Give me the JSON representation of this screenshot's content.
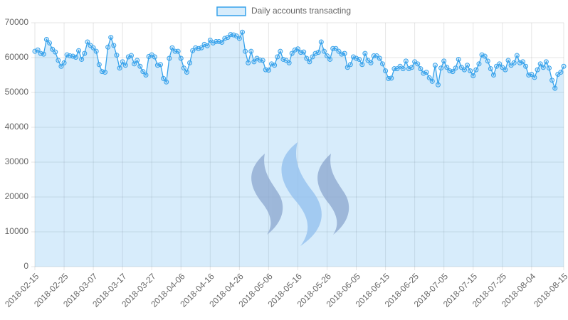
{
  "chart_data": {
    "type": "line",
    "x": [
      "2018-02-15",
      "2018-02-16",
      "2018-02-17",
      "2018-02-18",
      "2018-02-19",
      "2018-02-20",
      "2018-02-21",
      "2018-02-22",
      "2018-02-23",
      "2018-02-24",
      "2018-02-25",
      "2018-02-26",
      "2018-02-27",
      "2018-02-28",
      "2018-03-01",
      "2018-03-02",
      "2018-03-03",
      "2018-03-04",
      "2018-03-05",
      "2018-03-06",
      "2018-03-07",
      "2018-03-08",
      "2018-03-09",
      "2018-03-10",
      "2018-03-11",
      "2018-03-12",
      "2018-03-13",
      "2018-03-14",
      "2018-03-15",
      "2018-03-16",
      "2018-03-17",
      "2018-03-18",
      "2018-03-19",
      "2018-03-20",
      "2018-03-21",
      "2018-03-22",
      "2018-03-23",
      "2018-03-24",
      "2018-03-25",
      "2018-03-26",
      "2018-03-27",
      "2018-03-28",
      "2018-03-29",
      "2018-03-30",
      "2018-03-31",
      "2018-04-01",
      "2018-04-02",
      "2018-04-03",
      "2018-04-04",
      "2018-04-05",
      "2018-04-06",
      "2018-04-07",
      "2018-04-08",
      "2018-04-09",
      "2018-04-10",
      "2018-04-11",
      "2018-04-12",
      "2018-04-13",
      "2018-04-14",
      "2018-04-15",
      "2018-04-16",
      "2018-04-17",
      "2018-04-18",
      "2018-04-19",
      "2018-04-20",
      "2018-04-21",
      "2018-04-22",
      "2018-04-23",
      "2018-04-24",
      "2018-04-25",
      "2018-04-26",
      "2018-04-27",
      "2018-04-28",
      "2018-04-29",
      "2018-04-30",
      "2018-05-01",
      "2018-05-02",
      "2018-05-03",
      "2018-05-04",
      "2018-05-05",
      "2018-05-06",
      "2018-05-07",
      "2018-05-08",
      "2018-05-09",
      "2018-05-10",
      "2018-05-11",
      "2018-05-12",
      "2018-05-13",
      "2018-05-14",
      "2018-05-15",
      "2018-05-16",
      "2018-05-17",
      "2018-05-18",
      "2018-05-19",
      "2018-05-20",
      "2018-05-21",
      "2018-05-22",
      "2018-05-23",
      "2018-05-24",
      "2018-05-25",
      "2018-05-26",
      "2018-05-27",
      "2018-05-28",
      "2018-05-29",
      "2018-05-30",
      "2018-05-31",
      "2018-06-01",
      "2018-06-02",
      "2018-06-03",
      "2018-06-04",
      "2018-06-05",
      "2018-06-06",
      "2018-06-07",
      "2018-06-08",
      "2018-06-09",
      "2018-06-10",
      "2018-06-11",
      "2018-06-12",
      "2018-06-13",
      "2018-06-14",
      "2018-06-15",
      "2018-06-16",
      "2018-06-17",
      "2018-06-18",
      "2018-06-19",
      "2018-06-20",
      "2018-06-21",
      "2018-06-22",
      "2018-06-23",
      "2018-06-24",
      "2018-06-25",
      "2018-06-26",
      "2018-06-27",
      "2018-06-28",
      "2018-06-29",
      "2018-06-30",
      "2018-07-01",
      "2018-07-02",
      "2018-07-03",
      "2018-07-04",
      "2018-07-05",
      "2018-07-06",
      "2018-07-07",
      "2018-07-08",
      "2018-07-09",
      "2018-07-10",
      "2018-07-11",
      "2018-07-12",
      "2018-07-13",
      "2018-07-14",
      "2018-07-15",
      "2018-07-16",
      "2018-07-17",
      "2018-07-18",
      "2018-07-19",
      "2018-07-20",
      "2018-07-21",
      "2018-07-22",
      "2018-07-23",
      "2018-07-24",
      "2018-07-25",
      "2018-07-26",
      "2018-07-27",
      "2018-07-28",
      "2018-07-29",
      "2018-07-30",
      "2018-07-31",
      "2018-08-01",
      "2018-08-02",
      "2018-08-03",
      "2018-08-04",
      "2018-08-05",
      "2018-08-06",
      "2018-08-07",
      "2018-08-08",
      "2018-08-09",
      "2018-08-10",
      "2018-08-11",
      "2018-08-12",
      "2018-08-13",
      "2018-08-14",
      "2018-08-15"
    ],
    "series": [
      {
        "name": "Daily accounts transacting",
        "color": "#36a2eb",
        "fill": "rgba(54,162,235,0.2)",
        "values": [
          61800,
          62200,
          61200,
          61000,
          65200,
          64200,
          62400,
          61600,
          59200,
          57500,
          58500,
          60800,
          60500,
          60400,
          60100,
          62000,
          59500,
          61200,
          64500,
          63500,
          62800,
          61800,
          58000,
          56000,
          55800,
          63000,
          65800,
          63500,
          60700,
          57000,
          58800,
          57800,
          60200,
          60600,
          58200,
          59200,
          57500,
          56000,
          55000,
          60300,
          60800,
          60200,
          57800,
          58000,
          54000,
          53000,
          59800,
          62800,
          61800,
          61800,
          59800,
          57000,
          55800,
          58500,
          62000,
          62800,
          62600,
          62800,
          63800,
          63400,
          65000,
          64200,
          64600,
          64600,
          64400,
          65500,
          65800,
          66600,
          66500,
          66200,
          65500,
          67300,
          61800,
          58500,
          61800,
          58800,
          59800,
          59300,
          59200,
          56500,
          56400,
          58200,
          57800,
          60200,
          61800,
          59500,
          59200,
          58500,
          61200,
          62200,
          62500,
          61500,
          61600,
          59800,
          58800,
          60200,
          61200,
          61500,
          64500,
          61800,
          60500,
          59500,
          62600,
          62600,
          61800,
          61000,
          61200,
          57200,
          58000,
          60200,
          59800,
          59500,
          58000,
          61200,
          59200,
          58500,
          60500,
          60500,
          59800,
          58200,
          56200,
          54000,
          54100,
          56800,
          56800,
          57500,
          56800,
          59000,
          56800,
          57200,
          58800,
          58200,
          56800,
          55500,
          55800,
          54200,
          53200,
          57800,
          52200,
          57000,
          59000,
          57200,
          56200,
          56000,
          57000,
          59500,
          57200,
          56500,
          57800,
          56200,
          54800,
          56500,
          58200,
          60800,
          60400,
          59000,
          56800,
          55000,
          57500,
          58200,
          57200,
          56500,
          59200,
          57800,
          58500,
          60600,
          58500,
          58800,
          57500,
          55000,
          55200,
          54300,
          56500,
          58200,
          57200,
          58800,
          57000,
          53500,
          51200,
          55200,
          55800,
          57500
        ]
      }
    ],
    "xlim": [
      "2018-02-15",
      "2018-08-15"
    ],
    "xticks": [
      "2018-02-15",
      "2018-02-25",
      "2018-03-07",
      "2018-03-17",
      "2018-03-27",
      "2018-04-06",
      "2018-04-16",
      "2018-04-26",
      "2018-05-06",
      "2018-05-16",
      "2018-05-26",
      "2018-06-05",
      "2018-06-15",
      "2018-06-25",
      "2018-07-05",
      "2018-07-15",
      "2018-07-25",
      "2018-08-04",
      "2018-08-15"
    ],
    "ylim": [
      0,
      70000
    ],
    "yticks": [
      0,
      10000,
      20000,
      30000,
      40000,
      50000,
      60000,
      70000
    ],
    "grid": true,
    "legend": "top"
  }
}
